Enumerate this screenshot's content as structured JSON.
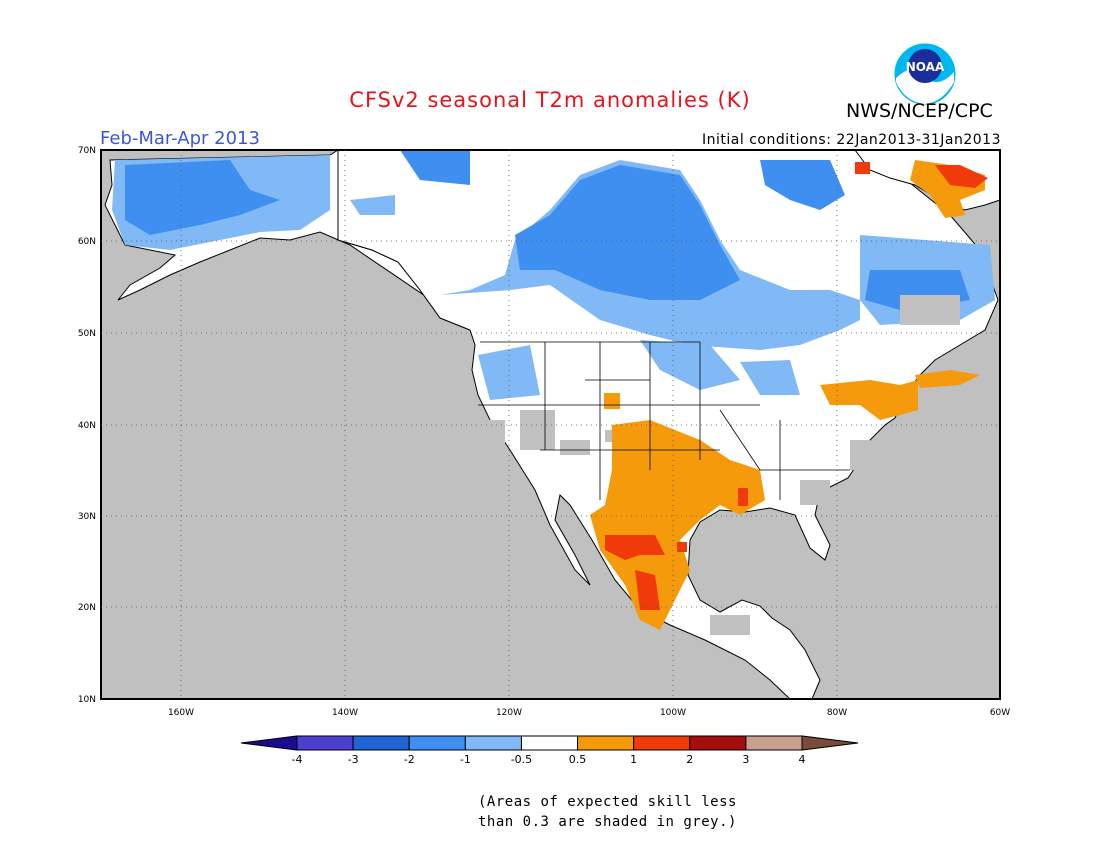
{
  "header": {
    "title": "CFSv2 seasonal T2m anomalies (K)",
    "title_color": "#e8131a",
    "organization": "NWS/NCEP/CPC",
    "logo_text": "NOAA",
    "period": "Feb-Mar-Apr 2013",
    "period_color": "#3a58d6",
    "initial_conditions": "Initial conditions: 22Jan2013-31Jan2013"
  },
  "map": {
    "lon_range": [
      -172,
      -60
    ],
    "lat_range": [
      10,
      70
    ],
    "lon_ticks": [
      "160W",
      "140W",
      "120W",
      "100W",
      "80W",
      "60W"
    ],
    "lat_ticks": [
      "70N",
      "60N",
      "50N",
      "40N",
      "30N",
      "20N",
      "10N"
    ],
    "grid": true,
    "land_color": "#ffffff",
    "no_skill_color": "#c0c0c0"
  },
  "colorbar": {
    "labels": [
      "-4",
      "-3",
      "-2",
      "-1",
      "-0.5",
      "0.5",
      "1",
      "2",
      "3",
      "4"
    ],
    "colors": [
      "#1a0c8c",
      "#4a3fcf",
      "#1f63d4",
      "#3f8ff0",
      "#80b9f5",
      "#ffffff",
      "#f59a0a",
      "#f03a0a",
      "#a50e0e",
      "#c9a090",
      "#7a4a3a"
    ],
    "units": "K"
  },
  "footnote": {
    "line1": "(Areas of expected skill less",
    "line2": "than 0.3 are shaded in grey.)"
  }
}
